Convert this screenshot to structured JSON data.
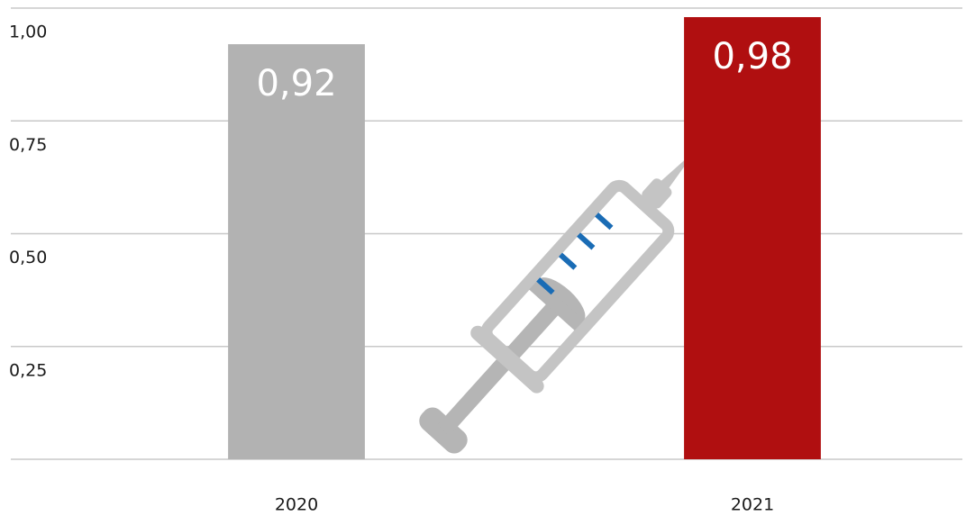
{
  "chart_data": {
    "type": "bar",
    "categories": [
      "2020",
      "2021"
    ],
    "values": [
      0.92,
      0.98
    ],
    "value_labels": [
      "0,92",
      "0,98"
    ],
    "colors": [
      "#b2b2b2",
      "#b00f10"
    ],
    "ylim": [
      0,
      1
    ],
    "yticks": [
      {
        "value": 0.25,
        "label": "0,25"
      },
      {
        "value": 0.5,
        "label": "0,50"
      },
      {
        "value": 0.75,
        "label": "0,75"
      },
      {
        "value": 1,
        "label": "1,00"
      }
    ],
    "grid": true
  }
}
